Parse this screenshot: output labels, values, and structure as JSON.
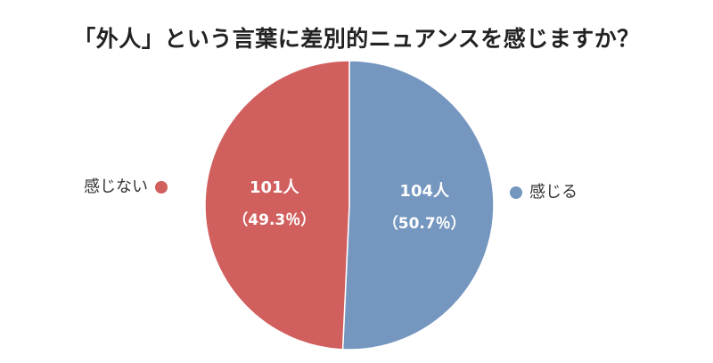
{
  "chart_data": {
    "type": "pie",
    "title": "「外人」という言葉に差別的ニュアンスを感じますか？",
    "slices": [
      {
        "label": "感じない",
        "count": 101,
        "count_label": "101人",
        "percent": 49.3,
        "percent_label": "（49.3％）",
        "color": "#d15f5e"
      },
      {
        "label": "感じる",
        "count": 104,
        "count_label": "104人",
        "percent": 50.7,
        "percent_label": "（50.7％）",
        "color": "#7496bf"
      }
    ],
    "legend_placement": "sides"
  }
}
